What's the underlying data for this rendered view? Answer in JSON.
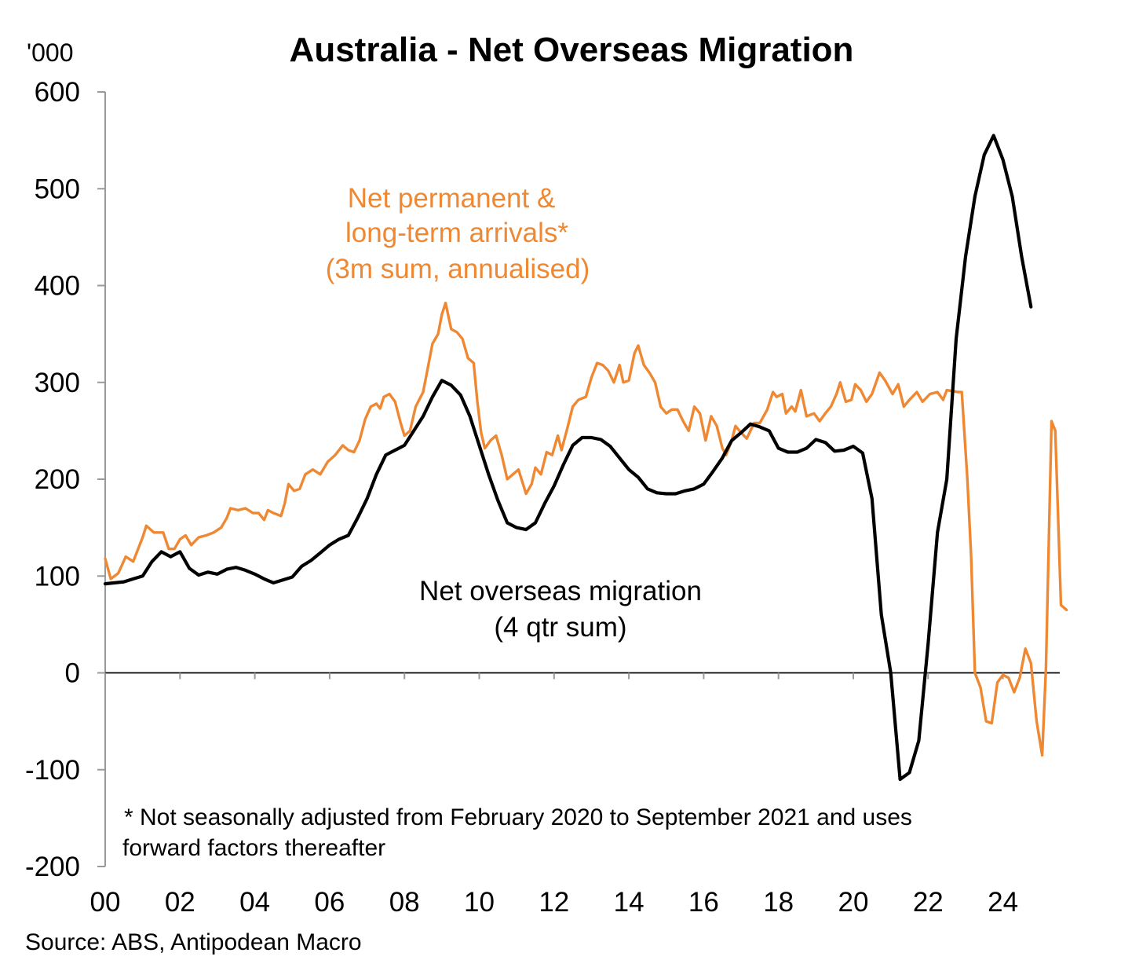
{
  "chart_data": {
    "type": "line",
    "title": "Australia - Net Overseas Migration",
    "unit_label": "'000",
    "ylim": [
      -200,
      600
    ],
    "xlim": [
      2000,
      2025.8
    ],
    "y_ticks": [
      600,
      500,
      400,
      300,
      200,
      100,
      0,
      -100,
      -200
    ],
    "y_tick_labels": [
      "600",
      "500",
      "400",
      "300",
      "200",
      "100",
      "0",
      "-100",
      "-200"
    ],
    "x_ticks": [
      2000,
      2002,
      2004,
      2006,
      2008,
      2010,
      2012,
      2014,
      2016,
      2018,
      2020,
      2022,
      2024
    ],
    "x_tick_labels": [
      "00",
      "02",
      "04",
      "06",
      "08",
      "10",
      "12",
      "14",
      "16",
      "18",
      "20",
      "22",
      "24"
    ],
    "grid": false,
    "series": [
      {
        "name": "Net permanent & long-term arrivals* (3m sum, annualised)",
        "label_lines": [
          "Net permanent &",
          "long-term arrivals*",
          "(3m sum, annualised)"
        ],
        "color": "#ef8833",
        "points": [
          [
            2000.0,
            118
          ],
          [
            2000.15,
            97
          ],
          [
            2000.35,
            103
          ],
          [
            2000.55,
            120
          ],
          [
            2000.75,
            115
          ],
          [
            2001.0,
            140
          ],
          [
            2001.1,
            152
          ],
          [
            2001.3,
            145
          ],
          [
            2001.55,
            145
          ],
          [
            2001.7,
            128
          ],
          [
            2001.85,
            128
          ],
          [
            2002.0,
            138
          ],
          [
            2002.15,
            142
          ],
          [
            2002.3,
            132
          ],
          [
            2002.5,
            140
          ],
          [
            2002.7,
            142
          ],
          [
            2002.9,
            145
          ],
          [
            2003.1,
            150
          ],
          [
            2003.25,
            160
          ],
          [
            2003.35,
            170
          ],
          [
            2003.55,
            168
          ],
          [
            2003.75,
            170
          ],
          [
            2003.95,
            165
          ],
          [
            2004.1,
            165
          ],
          [
            2004.25,
            158
          ],
          [
            2004.35,
            168
          ],
          [
            2004.5,
            165
          ],
          [
            2004.7,
            162
          ],
          [
            2004.8,
            175
          ],
          [
            2004.9,
            195
          ],
          [
            2005.05,
            188
          ],
          [
            2005.2,
            190
          ],
          [
            2005.35,
            205
          ],
          [
            2005.55,
            210
          ],
          [
            2005.75,
            205
          ],
          [
            2005.95,
            218
          ],
          [
            2006.15,
            225
          ],
          [
            2006.35,
            235
          ],
          [
            2006.5,
            230
          ],
          [
            2006.65,
            228
          ],
          [
            2006.8,
            240
          ],
          [
            2006.95,
            262
          ],
          [
            2007.1,
            275
          ],
          [
            2007.25,
            278
          ],
          [
            2007.35,
            273
          ],
          [
            2007.45,
            285
          ],
          [
            2007.6,
            288
          ],
          [
            2007.75,
            280
          ],
          [
            2007.9,
            258
          ],
          [
            2008.0,
            245
          ],
          [
            2008.15,
            250
          ],
          [
            2008.3,
            275
          ],
          [
            2008.5,
            290
          ],
          [
            2008.6,
            310
          ],
          [
            2008.75,
            340
          ],
          [
            2008.9,
            350
          ],
          [
            2009.0,
            370
          ],
          [
            2009.1,
            382
          ],
          [
            2009.25,
            355
          ],
          [
            2009.4,
            352
          ],
          [
            2009.55,
            345
          ],
          [
            2009.7,
            325
          ],
          [
            2009.85,
            320
          ],
          [
            2009.95,
            280
          ],
          [
            2010.05,
            248
          ],
          [
            2010.15,
            232
          ],
          [
            2010.3,
            240
          ],
          [
            2010.45,
            245
          ],
          [
            2010.6,
            225
          ],
          [
            2010.75,
            200
          ],
          [
            2010.9,
            205
          ],
          [
            2011.05,
            210
          ],
          [
            2011.25,
            185
          ],
          [
            2011.4,
            195
          ],
          [
            2011.5,
            212
          ],
          [
            2011.65,
            205
          ],
          [
            2011.8,
            228
          ],
          [
            2011.95,
            225
          ],
          [
            2012.1,
            245
          ],
          [
            2012.2,
            230
          ],
          [
            2012.35,
            252
          ],
          [
            2012.5,
            275
          ],
          [
            2012.65,
            282
          ],
          [
            2012.85,
            285
          ],
          [
            2013.0,
            305
          ],
          [
            2013.15,
            320
          ],
          [
            2013.3,
            318
          ],
          [
            2013.45,
            312
          ],
          [
            2013.6,
            300
          ],
          [
            2013.75,
            318
          ],
          [
            2013.85,
            300
          ],
          [
            2014.0,
            302
          ],
          [
            2014.15,
            330
          ],
          [
            2014.25,
            338
          ],
          [
            2014.4,
            318
          ],
          [
            2014.55,
            310
          ],
          [
            2014.7,
            300
          ],
          [
            2014.85,
            275
          ],
          [
            2015.0,
            268
          ],
          [
            2015.15,
            272
          ],
          [
            2015.3,
            272
          ],
          [
            2015.45,
            260
          ],
          [
            2015.6,
            250
          ],
          [
            2015.75,
            275
          ],
          [
            2015.9,
            268
          ],
          [
            2016.05,
            240
          ],
          [
            2016.2,
            265
          ],
          [
            2016.35,
            255
          ],
          [
            2016.5,
            232
          ],
          [
            2016.6,
            225
          ],
          [
            2016.75,
            240
          ],
          [
            2016.85,
            255
          ],
          [
            2017.0,
            248
          ],
          [
            2017.15,
            242
          ],
          [
            2017.35,
            258
          ],
          [
            2017.5,
            258
          ],
          [
            2017.7,
            272
          ],
          [
            2017.85,
            290
          ],
          [
            2017.95,
            285
          ],
          [
            2018.1,
            288
          ],
          [
            2018.2,
            268
          ],
          [
            2018.35,
            275
          ],
          [
            2018.45,
            270
          ],
          [
            2018.6,
            292
          ],
          [
            2018.75,
            265
          ],
          [
            2018.95,
            268
          ],
          [
            2019.1,
            260
          ],
          [
            2019.25,
            268
          ],
          [
            2019.4,
            275
          ],
          [
            2019.55,
            288
          ],
          [
            2019.65,
            300
          ],
          [
            2019.8,
            280
          ],
          [
            2019.95,
            282
          ],
          [
            2020.05,
            298
          ],
          [
            2020.2,
            292
          ],
          [
            2020.35,
            280
          ],
          [
            2020.5,
            288
          ],
          [
            2020.7,
            310
          ],
          [
            2020.85,
            302
          ],
          [
            2021.05,
            288
          ],
          [
            2021.2,
            298
          ],
          [
            2021.35,
            275
          ],
          [
            2021.5,
            282
          ],
          [
            2021.7,
            290
          ],
          [
            2021.85,
            280
          ],
          [
            2022.05,
            288
          ],
          [
            2022.25,
            290
          ],
          [
            2022.4,
            282
          ],
          [
            2022.5,
            292
          ],
          [
            2022.8,
            290
          ],
          [
            2022.9,
            290
          ],
          [
            2023.05,
            200
          ],
          [
            2023.15,
            120
          ],
          [
            2023.25,
            0
          ],
          [
            2023.4,
            -15
          ],
          [
            2023.55,
            -50
          ],
          [
            2023.7,
            -52
          ],
          [
            2023.85,
            -10
          ],
          [
            2024.0,
            -2
          ],
          [
            2024.15,
            -5
          ],
          [
            2024.3,
            -20
          ],
          [
            2024.45,
            -5
          ],
          [
            2024.6,
            25
          ],
          [
            2024.75,
            10
          ],
          [
            2024.9,
            -50
          ],
          [
            2025.05,
            -85
          ],
          [
            2025.15,
            5
          ],
          [
            2025.3,
            260
          ],
          [
            2025.4,
            250
          ],
          [
            2025.55,
            70
          ],
          [
            2025.7,
            65
          ]
        ]
      },
      {
        "name": "Net overseas migration (4 qtr sum)",
        "label_lines": [
          "Net overseas migration",
          "(4 qtr sum)"
        ],
        "color": "#000000",
        "points": [
          [
            2000.0,
            92
          ],
          [
            2000.25,
            93
          ],
          [
            2000.5,
            94
          ],
          [
            2000.75,
            97
          ],
          [
            2001.0,
            100
          ],
          [
            2001.25,
            115
          ],
          [
            2001.5,
            125
          ],
          [
            2001.75,
            120
          ],
          [
            2002.0,
            125
          ],
          [
            2002.25,
            108
          ],
          [
            2002.5,
            101
          ],
          [
            2002.75,
            104
          ],
          [
            2003.0,
            102
          ],
          [
            2003.25,
            107
          ],
          [
            2003.5,
            109
          ],
          [
            2003.75,
            106
          ],
          [
            2004.0,
            102
          ],
          [
            2004.25,
            97
          ],
          [
            2004.5,
            93
          ],
          [
            2004.75,
            96
          ],
          [
            2005.0,
            99
          ],
          [
            2005.25,
            110
          ],
          [
            2005.5,
            116
          ],
          [
            2005.75,
            124
          ],
          [
            2006.0,
            132
          ],
          [
            2006.25,
            138
          ],
          [
            2006.5,
            142
          ],
          [
            2006.75,
            160
          ],
          [
            2007.0,
            180
          ],
          [
            2007.25,
            205
          ],
          [
            2007.5,
            225
          ],
          [
            2007.75,
            230
          ],
          [
            2008.0,
            235
          ],
          [
            2008.25,
            250
          ],
          [
            2008.5,
            265
          ],
          [
            2008.75,
            285
          ],
          [
            2009.0,
            302
          ],
          [
            2009.25,
            297
          ],
          [
            2009.5,
            287
          ],
          [
            2009.75,
            265
          ],
          [
            2010.0,
            235
          ],
          [
            2010.25,
            205
          ],
          [
            2010.5,
            178
          ],
          [
            2010.75,
            155
          ],
          [
            2011.0,
            150
          ],
          [
            2011.25,
            148
          ],
          [
            2011.5,
            155
          ],
          [
            2011.75,
            175
          ],
          [
            2012.0,
            193
          ],
          [
            2012.25,
            215
          ],
          [
            2012.5,
            235
          ],
          [
            2012.75,
            243
          ],
          [
            2013.0,
            243
          ],
          [
            2013.25,
            241
          ],
          [
            2013.5,
            234
          ],
          [
            2013.75,
            222
          ],
          [
            2014.0,
            210
          ],
          [
            2014.25,
            202
          ],
          [
            2014.5,
            190
          ],
          [
            2014.75,
            186
          ],
          [
            2015.0,
            185
          ],
          [
            2015.25,
            185
          ],
          [
            2015.5,
            188
          ],
          [
            2015.75,
            190
          ],
          [
            2016.0,
            195
          ],
          [
            2016.25,
            208
          ],
          [
            2016.5,
            222
          ],
          [
            2016.75,
            240
          ],
          [
            2017.0,
            248
          ],
          [
            2017.25,
            257
          ],
          [
            2017.5,
            254
          ],
          [
            2017.75,
            250
          ],
          [
            2018.0,
            232
          ],
          [
            2018.25,
            228
          ],
          [
            2018.5,
            228
          ],
          [
            2018.75,
            232
          ],
          [
            2019.0,
            241
          ],
          [
            2019.25,
            238
          ],
          [
            2019.5,
            229
          ],
          [
            2019.75,
            230
          ],
          [
            2020.0,
            234
          ],
          [
            2020.25,
            227
          ],
          [
            2020.5,
            180
          ],
          [
            2020.75,
            60
          ],
          [
            2021.0,
            0
          ],
          [
            2021.25,
            -110
          ],
          [
            2021.5,
            -103
          ],
          [
            2021.75,
            -70
          ],
          [
            2022.0,
            30
          ],
          [
            2022.25,
            145
          ],
          [
            2022.5,
            200
          ],
          [
            2022.75,
            345
          ],
          [
            2023.0,
            430
          ],
          [
            2023.25,
            492
          ],
          [
            2023.5,
            535
          ],
          [
            2023.75,
            555
          ],
          [
            2024.0,
            530
          ],
          [
            2024.25,
            492
          ],
          [
            2024.5,
            430
          ],
          [
            2024.75,
            378
          ]
        ]
      }
    ],
    "note_lines": [
      "* Not seasonally adjusted from February 2020 to September 2021 and uses",
      "forward factors thereafter"
    ],
    "source": "Source: ABS, Antipodean Macro"
  }
}
